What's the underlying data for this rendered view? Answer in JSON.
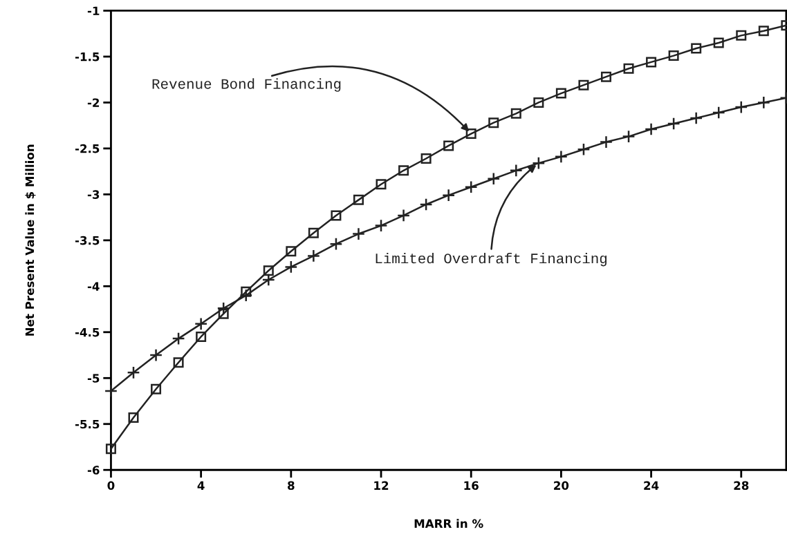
{
  "chart_data": {
    "type": "line",
    "xlabel": "MARR in %",
    "ylabel": "Net Present Value in $ Million",
    "x": [
      0,
      1,
      2,
      3,
      4,
      5,
      6,
      7,
      8,
      9,
      10,
      11,
      12,
      13,
      14,
      15,
      16,
      17,
      18,
      19,
      20,
      21,
      22,
      23,
      24,
      25,
      26,
      27,
      28,
      29,
      30
    ],
    "series": [
      {
        "name": "Revenue Bond Financing",
        "color": "#222222",
        "marker": "square",
        "values": [
          -5.77,
          -5.43,
          -5.12,
          -4.83,
          -4.55,
          -4.3,
          -4.06,
          -3.83,
          -3.62,
          -3.42,
          -3.23,
          -3.06,
          -2.89,
          -2.74,
          -2.61,
          -2.47,
          -2.34,
          -2.22,
          -2.12,
          -2.0,
          -1.9,
          -1.81,
          -1.72,
          -1.63,
          -1.56,
          -1.49,
          -1.41,
          -1.35,
          -1.27,
          -1.22,
          -1.16
        ]
      },
      {
        "name": "Limited Overdraft Financing",
        "color": "#222222",
        "marker": "cross",
        "values": [
          -5.14,
          -4.94,
          -4.75,
          -4.57,
          -4.41,
          -4.24,
          -4.1,
          -3.93,
          -3.79,
          -3.67,
          -3.54,
          -3.43,
          -3.34,
          -3.23,
          -3.11,
          -3.01,
          -2.92,
          -2.83,
          -2.74,
          -2.66,
          -2.59,
          -2.51,
          -2.43,
          -2.37,
          -2.29,
          -2.23,
          -2.17,
          -2.11,
          -2.05,
          -2.0,
          -1.95
        ]
      }
    ],
    "xlim": [
      0,
      30
    ],
    "xticks": [
      0,
      4,
      8,
      12,
      16,
      20,
      24,
      28
    ],
    "ylim": [
      -6,
      -1
    ],
    "yticks": [
      -6,
      -5.5,
      -5,
      -4.5,
      -4,
      -3.5,
      -3,
      -2.5,
      -2,
      -1.5,
      -1
    ],
    "grid": false,
    "legend": false
  }
}
